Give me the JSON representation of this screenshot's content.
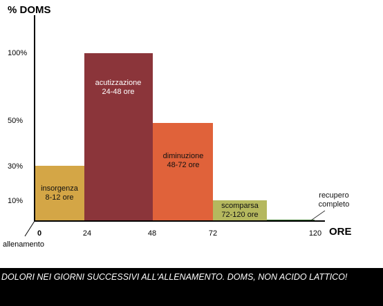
{
  "chart_data": {
    "type": "bar",
    "title": "",
    "ylabel": "% DOMS",
    "xlabel": "ORE",
    "x_ticks": [
      "0",
      "24",
      "48",
      "72",
      "120"
    ],
    "y_ticks": [
      "10%",
      "30%",
      "50%",
      "100%"
    ],
    "origin_label": "allenamento",
    "bars": [
      {
        "name": "insorgenza",
        "period": "8-12 ore",
        "x_start": 0,
        "x_end": 24,
        "value": 30,
        "color": "#d4a646"
      },
      {
        "name": "acutizzazione",
        "period": "24-48 ore",
        "x_start": 24,
        "x_end": 48,
        "value": 100,
        "color": "#8b353a"
      },
      {
        "name": "diminuzione",
        "period": "48-72 ore",
        "x_start": 48,
        "x_end": 72,
        "value": 50,
        "color": "#e0623a"
      },
      {
        "name": "scomparsa",
        "period": "72-120 ore",
        "x_start": 72,
        "x_end": 96,
        "value": 10,
        "color": "#b5b85e"
      },
      {
        "name": "recupero",
        "period": "completo",
        "x_start": 96,
        "x_end": 120,
        "value": 0.5,
        "color": "#3c7a2e"
      }
    ]
  },
  "caption": "DOLORI NEI GIORNI SUCCESSIVI ALL'ALLENAMENTO. DOMS, NON ACIDO LATTICO!"
}
